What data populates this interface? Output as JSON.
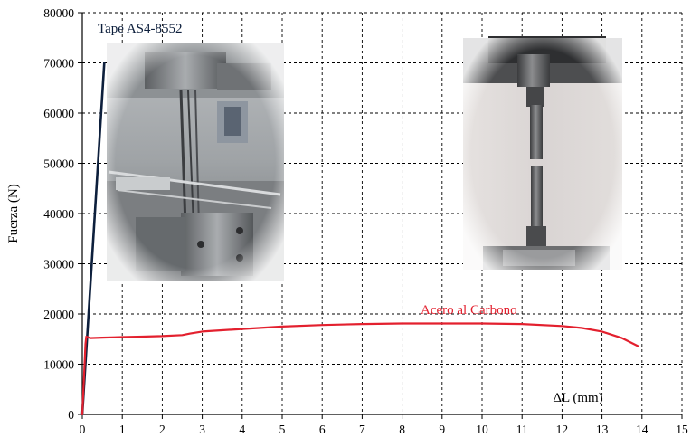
{
  "chart_data": {
    "type": "line",
    "title": "",
    "xlabel": "ΔL (mm)",
    "ylabel": "Fuerza (N)",
    "xlim": [
      0,
      15
    ],
    "ylim": [
      0,
      80000
    ],
    "grid": true,
    "grid_style": "dashed",
    "x_ticks": [
      "0",
      "1",
      "2",
      "3",
      "4",
      "5",
      "6",
      "7",
      "8",
      "9",
      "10",
      "11",
      "12",
      "13",
      "14",
      "15"
    ],
    "y_ticks": [
      "0",
      "10000",
      "20000",
      "30000",
      "40000",
      "50000",
      "60000",
      "70000",
      "80000"
    ],
    "series": [
      {
        "name": "Tape AS4-8552",
        "color": "#0d1f3c",
        "x": [
          0,
          0.55
        ],
        "y": [
          0,
          70000
        ]
      },
      {
        "name": "Acero al Carbono",
        "color": "#e3202e",
        "x": [
          0,
          0.08,
          0.1,
          0.2,
          0.5,
          1.0,
          1.5,
          2.0,
          2.5,
          2.7,
          3.0,
          4.0,
          5.0,
          6.0,
          7.0,
          8.0,
          9.0,
          10.0,
          11.0,
          12.0,
          12.5,
          13.0,
          13.5,
          13.9
        ],
        "y": [
          0,
          14000,
          15500,
          15200,
          15300,
          15400,
          15500,
          15600,
          15800,
          16100,
          16500,
          17000,
          17500,
          17800,
          18000,
          18100,
          18100,
          18100,
          18000,
          17600,
          17200,
          16500,
          15200,
          13600
        ]
      }
    ],
    "images": [
      {
        "name": "photo-test-machine-tape"
      },
      {
        "name": "photo-steel-specimen"
      }
    ]
  }
}
